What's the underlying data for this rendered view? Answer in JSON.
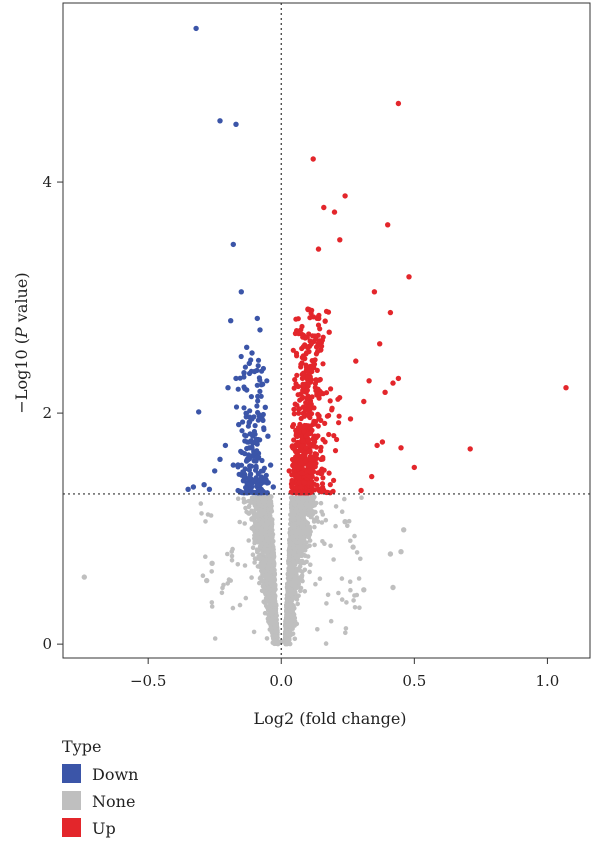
{
  "chart_data": {
    "type": "scatter",
    "title": "",
    "xlabel": "Log2 (fold change)",
    "ylabel_parts": [
      "−Log10 (",
      "P",
      " value)"
    ],
    "xlim": [
      -0.82,
      1.16
    ],
    "ylim": [
      -0.12,
      5.55
    ],
    "x_ticks": [
      -0.5,
      0.0,
      0.5,
      1.0
    ],
    "x_tick_labels": [
      "−0.5",
      "0.0",
      "0.5",
      "1.0"
    ],
    "y_ticks": [
      0,
      2,
      4
    ],
    "y_tick_labels": [
      "0",
      "2",
      "4"
    ],
    "thresholds": {
      "x": 0,
      "y": 1.3
    },
    "grid": false,
    "legend": {
      "title": "Type",
      "placement": "bottom-left",
      "entries": [
        {
          "name": "Down",
          "color": "#3b55a8"
        },
        {
          "name": "None",
          "color": "#bfbfbf"
        },
        {
          "name": "Up",
          "color": "#e3262b"
        }
      ]
    },
    "series": [
      {
        "name": "Down",
        "color": "#3b55a8",
        "points": [
          [
            -0.32,
            5.33
          ],
          [
            -0.23,
            4.53
          ],
          [
            -0.17,
            4.5
          ],
          [
            -0.18,
            3.46
          ],
          [
            -0.15,
            3.05
          ],
          [
            -0.13,
            2.57
          ],
          [
            -0.11,
            2.52
          ],
          [
            -0.09,
            2.82
          ],
          [
            -0.19,
            2.8
          ],
          [
            -0.08,
            2.72
          ],
          [
            -0.31,
            2.01
          ],
          [
            -0.12,
            2.43
          ],
          [
            -0.14,
            2.35
          ],
          [
            -0.1,
            2.36
          ],
          [
            -0.17,
            2.3
          ],
          [
            -0.07,
            2.25
          ],
          [
            -0.13,
            2.2
          ],
          [
            -0.2,
            2.22
          ],
          [
            -0.06,
            2.05
          ],
          [
            -0.33,
            1.36
          ],
          [
            -0.35,
            1.34
          ],
          [
            -0.27,
            1.34
          ],
          [
            -0.29,
            1.38
          ],
          [
            -0.25,
            1.5
          ],
          [
            -0.23,
            1.6
          ],
          [
            -0.21,
            1.72
          ],
          [
            -0.16,
            1.9
          ],
          [
            -0.11,
            1.95
          ],
          [
            -0.05,
            1.8
          ],
          [
            -0.04,
            1.55
          ],
          [
            -0.08,
            1.42
          ],
          [
            -0.03,
            1.36
          ],
          [
            -0.12,
            1.7
          ],
          [
            -0.18,
            1.55
          ],
          [
            -0.14,
            1.45
          ]
        ]
      },
      {
        "name": "Up",
        "color": "#e3262b",
        "points": [
          [
            0.44,
            4.68
          ],
          [
            0.12,
            4.2
          ],
          [
            0.24,
            3.88
          ],
          [
            0.16,
            3.78
          ],
          [
            0.2,
            3.74
          ],
          [
            0.4,
            3.63
          ],
          [
            0.22,
            3.5
          ],
          [
            0.14,
            3.42
          ],
          [
            0.48,
            3.18
          ],
          [
            0.35,
            3.05
          ],
          [
            0.41,
            2.87
          ],
          [
            0.37,
            2.6
          ],
          [
            0.44,
            2.3
          ],
          [
            0.42,
            2.26
          ],
          [
            0.39,
            2.18
          ],
          [
            1.07,
            2.22
          ],
          [
            0.71,
            1.69
          ],
          [
            0.5,
            1.53
          ],
          [
            0.33,
            2.28
          ],
          [
            0.31,
            2.1
          ],
          [
            0.28,
            2.45
          ],
          [
            0.26,
            1.95
          ],
          [
            0.18,
            2.7
          ],
          [
            0.1,
            2.9
          ],
          [
            0.08,
            2.3
          ],
          [
            0.06,
            1.8
          ],
          [
            0.05,
            1.55
          ],
          [
            0.04,
            1.38
          ],
          [
            0.36,
            1.72
          ],
          [
            0.38,
            1.75
          ],
          [
            0.45,
            1.7
          ],
          [
            0.3,
            1.33
          ],
          [
            0.34,
            1.45
          ],
          [
            0.03,
            1.5
          ],
          [
            0.15,
            1.6
          ]
        ]
      },
      {
        "name": "None",
        "color": "#bfbfbf",
        "points": [
          [
            -0.74,
            0.58
          ],
          [
            0.42,
            0.49
          ],
          [
            0.31,
            0.47
          ],
          [
            0.45,
            0.8
          ],
          [
            0.41,
            0.78
          ],
          [
            0.46,
            0.99
          ],
          [
            0.0,
            0.02
          ],
          [
            0.02,
            0.1
          ],
          [
            -0.02,
            0.12
          ],
          [
            -0.28,
            0.55
          ],
          [
            -0.26,
            0.7
          ],
          [
            0.27,
            0.84
          ],
          [
            0.24,
            1.06
          ]
        ]
      }
    ]
  }
}
